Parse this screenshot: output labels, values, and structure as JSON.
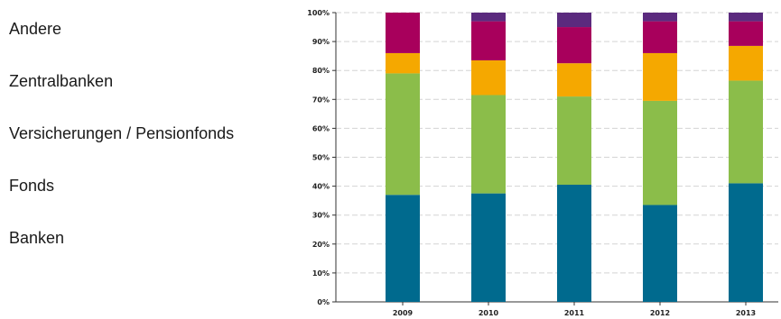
{
  "chart_data": {
    "type": "bar",
    "stacked": true,
    "categories": [
      "2009",
      "2010",
      "2011",
      "2012",
      "2013"
    ],
    "ylim": [
      0,
      100
    ],
    "yticks": [
      "0%",
      "10%",
      "20%",
      "30%",
      "40%",
      "50%",
      "60%",
      "70%",
      "80%",
      "90%",
      "100%"
    ],
    "grid": true,
    "legend_position": "left",
    "series": [
      {
        "name": "Banken",
        "color": "#006a8e",
        "values": [
          37,
          37.5,
          40.5,
          33.5,
          41
        ]
      },
      {
        "name": "Fonds",
        "color": "#8bbd4a",
        "values": [
          42,
          34,
          30.5,
          36,
          35.5
        ]
      },
      {
        "name": "Versicherungen / Pensionfonds",
        "color": "#f5a800",
        "values": [
          7,
          12,
          11.5,
          16.5,
          12
        ]
      },
      {
        "name": "Zentralbanken",
        "color": "#a8005c",
        "values": [
          14,
          13.5,
          12.5,
          11,
          8.5
        ]
      },
      {
        "name": "Andere",
        "color": "#5b2a7e",
        "values": [
          0,
          3,
          5,
          3,
          3
        ]
      }
    ]
  },
  "legend": [
    "Andere",
    "Zentralbanken",
    "Versicherungen / Pensionfonds",
    "Fonds",
    "Banken"
  ]
}
